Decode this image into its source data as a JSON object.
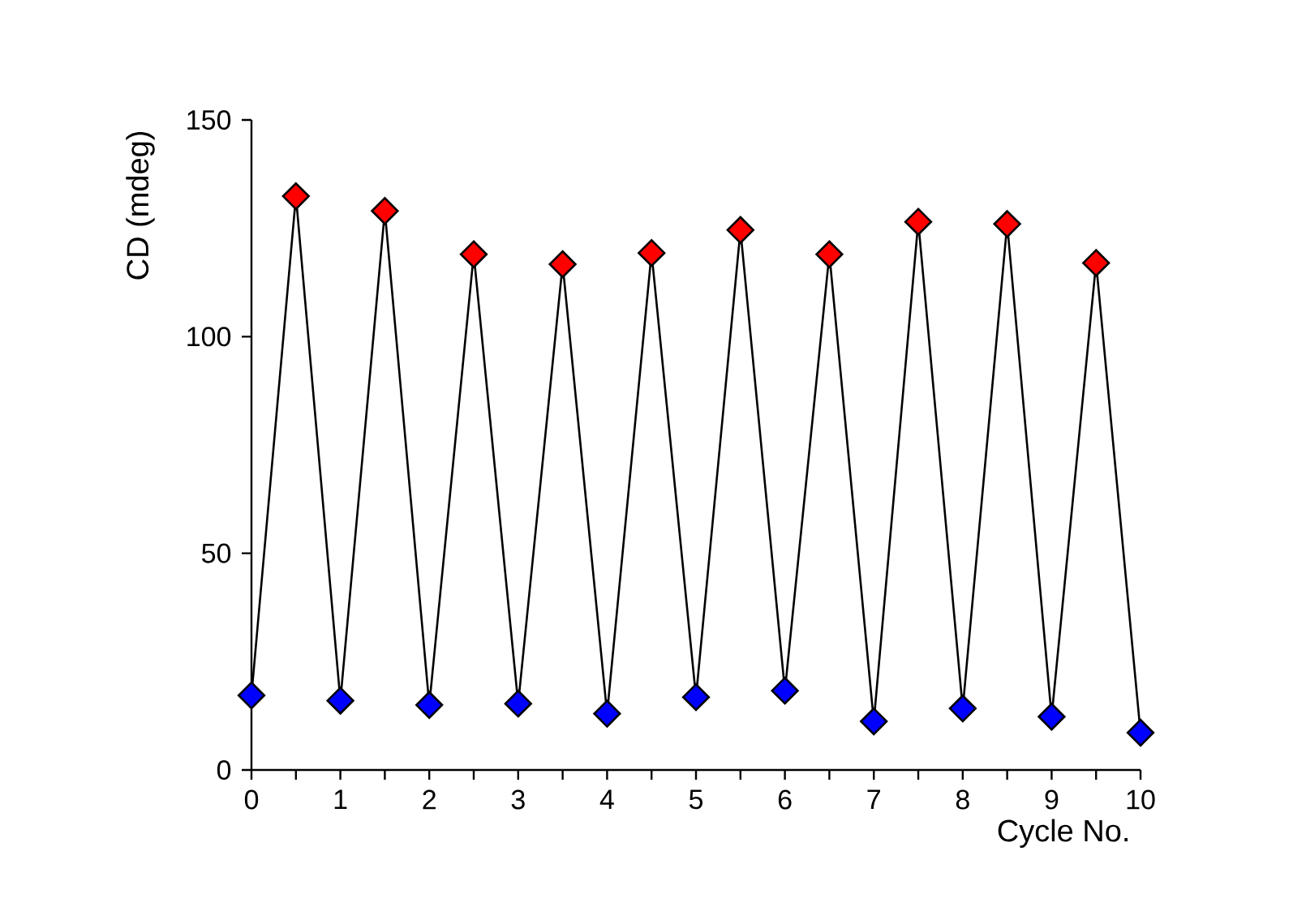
{
  "chart_data": {
    "type": "line",
    "xlabel": "Cycle No.",
    "ylabel": "CD (mdeg)",
    "xlim": [
      0,
      10
    ],
    "ylim": [
      0,
      150
    ],
    "xticks": [
      0,
      {
        "value": 0.5,
        "label": null
      },
      1,
      {
        "value": 1.5,
        "label": null
      },
      2,
      {
        "value": 2.5,
        "label": null
      },
      3,
      {
        "value": 3.5,
        "label": null
      },
      4,
      {
        "value": 4.5,
        "label": null
      },
      5,
      {
        "value": 5.5,
        "label": null
      },
      6,
      {
        "value": 6.5,
        "label": null
      },
      7,
      {
        "value": 7.5,
        "label": null
      },
      8,
      {
        "value": 8.5,
        "label": null
      },
      9,
      {
        "value": 9.5,
        "label": null
      },
      10
    ],
    "yticks": [
      0,
      50,
      100,
      150
    ],
    "marker": "diamond",
    "line_style": "solid",
    "series": [
      {
        "color": "#000000",
        "x": [
          0,
          0.5,
          1,
          1.5,
          2,
          2.5,
          3,
          3.5,
          4,
          4.5,
          5,
          5.5,
          6,
          6.5,
          7,
          7.5,
          8,
          8.5,
          9,
          9.5,
          10
        ],
        "values": [
          17.2,
          132.4,
          16,
          129,
          15,
          119,
          15.3,
          116.7,
          13,
          119.3,
          16.8,
          124.6,
          18.3,
          119,
          11.2,
          126.5,
          14.2,
          126,
          12.3,
          117,
          8.6
        ],
        "colors": [
          "#0000ff",
          "#ff0000",
          "#0000ff",
          "#ff0000",
          "#0000ff",
          "#ff0000",
          "#0000ff",
          "#ff0000",
          "#0000ff",
          "#ff0000",
          "#0000ff",
          "#ff0000",
          "#0000ff",
          "#ff0000",
          "#0000ff",
          "#ff0000",
          "#0000ff",
          "#ff0000",
          "#0000ff",
          "#ff0000",
          "#0000ff"
        ]
      }
    ]
  }
}
